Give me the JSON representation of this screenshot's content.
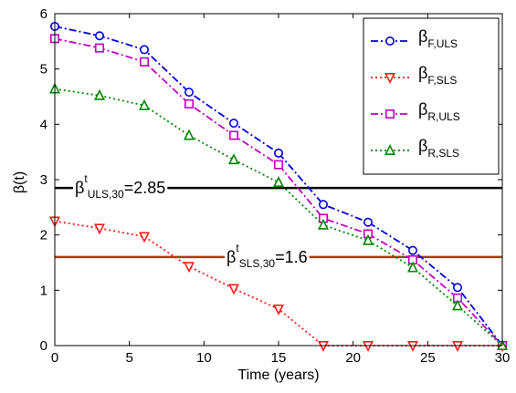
{
  "chart_data": {
    "type": "line",
    "xlabel": "Time (years)",
    "ylabel": "β(t)",
    "xlim": [
      0,
      30
    ],
    "ylim": [
      0,
      6
    ],
    "xticks": [
      "0",
      "5",
      "10",
      "15",
      "20",
      "25",
      "30"
    ],
    "yticks": [
      "0",
      "1",
      "2",
      "3",
      "4",
      "5",
      "6"
    ],
    "grid": false,
    "legend_position": "top-right",
    "x": [
      0,
      3,
      6,
      9,
      12,
      15,
      18,
      21,
      24,
      27,
      30
    ],
    "series": [
      {
        "key": "F_ULS",
        "legend_main": "β",
        "legend_sub": "F,ULS",
        "color": "#0000dd",
        "marker": "circle",
        "linestyle": "dashdot",
        "values": [
          5.77,
          5.6,
          5.35,
          4.58,
          4.02,
          3.48,
          2.55,
          2.23,
          1.72,
          1.05,
          0.0
        ]
      },
      {
        "key": "F_SLS",
        "legend_main": "β",
        "legend_sub": "F,SLS",
        "color": "#ff1a1a",
        "marker": "triangle-down",
        "linestyle": "dotted",
        "values": [
          2.25,
          2.12,
          1.97,
          1.43,
          1.03,
          0.66,
          0.0,
          0.0,
          0.0,
          0.0,
          0.0
        ]
      },
      {
        "key": "R_ULS",
        "legend_main": "β",
        "legend_sub": "R,ULS",
        "color": "#c000c0",
        "marker": "square",
        "linestyle": "dashdot",
        "values": [
          5.55,
          5.38,
          5.13,
          4.37,
          3.8,
          3.27,
          2.3,
          2.02,
          1.55,
          0.86,
          0.0
        ]
      },
      {
        "key": "R_SLS",
        "legend_main": "β",
        "legend_sub": "R,SLS",
        "color": "#008800",
        "marker": "triangle-up",
        "linestyle": "dotted",
        "values": [
          4.64,
          4.52,
          4.34,
          3.8,
          3.36,
          2.95,
          2.18,
          1.9,
          1.41,
          0.72,
          0.0
        ]
      }
    ],
    "reference_lines": [
      {
        "key": "ULS",
        "y": 2.85,
        "color": "#000000",
        "label_main": "β",
        "label_sup": "t",
        "label_sub": "ULS,30",
        "label_value": "=2.85"
      },
      {
        "key": "SLS",
        "y": 1.6,
        "color": "#a83c10",
        "label_main": "β",
        "label_sup": "t",
        "label_sub": "SLS,30",
        "label_value": "=1.6"
      }
    ]
  }
}
